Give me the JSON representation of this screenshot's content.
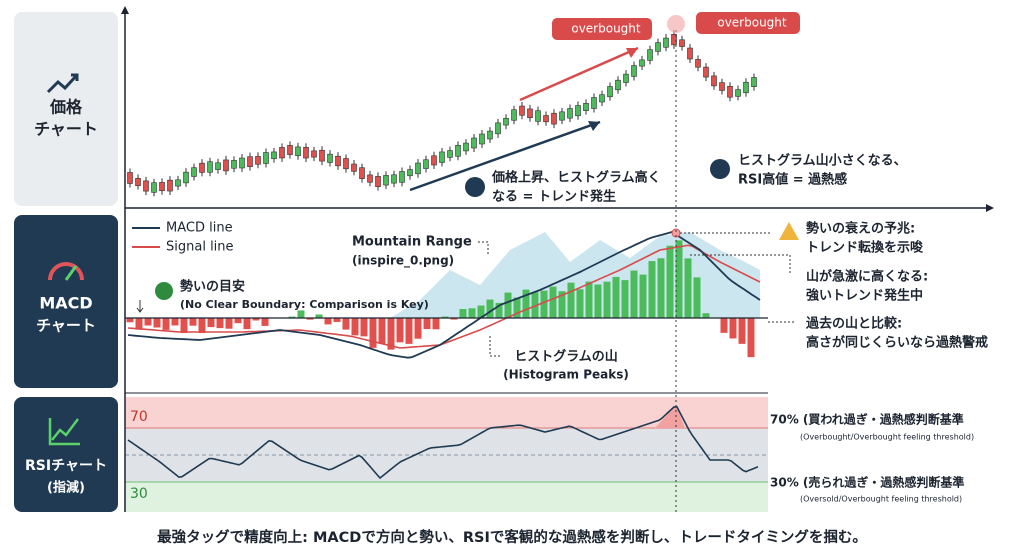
{
  "side_panels": {
    "price": [
      "価格",
      "チャート"
    ],
    "macd": [
      "MACD",
      "チャート"
    ],
    "rsi": [
      "RSIチャート",
      "(指減)"
    ]
  },
  "price_chart": {
    "badges": [
      "overbought",
      "overbought"
    ],
    "annotation_trend": [
      "価格上昇、ヒストグラム高く",
      "なる = トレンド発生"
    ],
    "annotation_heat": [
      "ヒストグラム山小さくなる、",
      "RSI高値 = 過熱感"
    ]
  },
  "macd_chart": {
    "legend": [
      "MACD line",
      "Signal line"
    ],
    "mountain": [
      "Mountain Range",
      "(inspire_0.png)"
    ],
    "guide": [
      "勢いの目安",
      "(No Clear Boundary: Comparison is Key)"
    ],
    "histogram": [
      "ヒストグラムの山",
      "(Histogram Peaks)"
    ],
    "notes": [
      [
        "勢いの衰えの予兆:",
        "トレンド転換を示唆"
      ],
      [
        "山が急激に高くなる:",
        "強いトレンド発生中"
      ],
      [
        "過去の山と比較:",
        "高さが同じくらいなら過熱警戒"
      ]
    ]
  },
  "rsi_chart": {
    "upper_level": 70,
    "lower_level": 30,
    "upper_note": [
      "70% (買われ過ぎ・過熱感判断基準",
      "(Overbought/Overbought feeling threshold)"
    ],
    "lower_note": [
      "30% (売られ過ぎ・過熱感判断基準",
      "(Oversold/Overbought feeling threshold)"
    ]
  },
  "footer": "最強タッグで精度向上: MACDで方向と勢い、RSIで客観的な過熱感を判断し、トレードタイミングを掴む。"
}
